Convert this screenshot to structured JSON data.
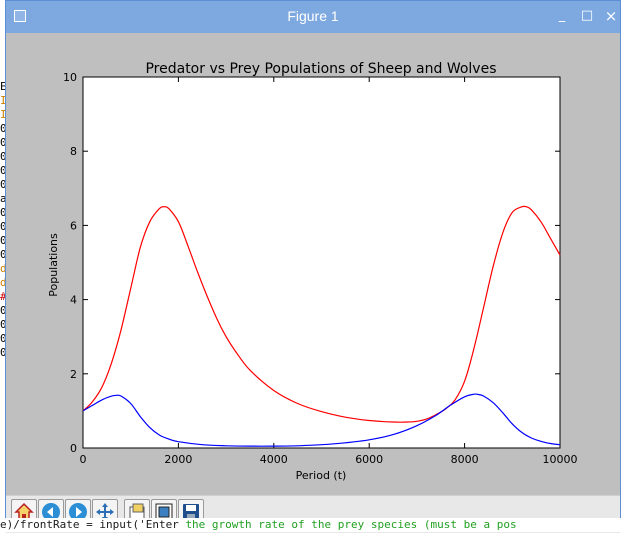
{
  "window": {
    "title": "Figure 1",
    "min_glyph": "_",
    "max_glyph": "□",
    "close_glyph": "×"
  },
  "background_text": {
    "left_chars": [
      "E",
      "I",
      "I",
      "0",
      "0",
      "0",
      "0",
      "0",
      "a",
      "0",
      "0",
      "0",
      "0",
      "d",
      "d",
      "#",
      "0",
      "0",
      "0",
      "0"
    ],
    "bottom_line_code": "e)/frontRate = input('Enter ",
    "bottom_line_string": "the growth rate of the prey species (must be a pos"
  },
  "toolbar": {
    "buttons": [
      {
        "name": "home-button",
        "icon": "home-icon"
      },
      {
        "name": "back-button",
        "icon": "left-arrow-icon"
      },
      {
        "name": "forward-button",
        "icon": "right-arrow-icon"
      },
      {
        "name": "pan-button",
        "icon": "move-icon"
      },
      {
        "name": "zoom-button",
        "icon": "zoom-rect-icon"
      },
      {
        "name": "subplots-button",
        "icon": "subplots-icon"
      },
      {
        "name": "save-button",
        "icon": "save-icon"
      }
    ]
  },
  "chart_data": {
    "type": "line",
    "title": "Predator vs Prey Populations of Sheep and Wolves",
    "xlabel": "Period (t)",
    "ylabel": "Populations",
    "xlim": [
      0,
      10000
    ],
    "ylim": [
      0,
      10
    ],
    "xticks": [
      0,
      2000,
      4000,
      6000,
      8000,
      10000
    ],
    "yticks": [
      0,
      2,
      4,
      6,
      8,
      10
    ],
    "grid": false,
    "series": [
      {
        "color": "#ff0000",
        "x": [
          0,
          200,
          400,
          600,
          800,
          1000,
          1200,
          1400,
          1600,
          1700,
          1800,
          2000,
          2200,
          2400,
          2600,
          2800,
          3000,
          3200,
          3500,
          4000,
          4500,
          5000,
          5500,
          6000,
          6500,
          6800,
          7000,
          7200,
          7400,
          7600,
          7800,
          8000,
          8200,
          8400,
          8600,
          8800,
          9000,
          9200,
          9300,
          9400,
          9600,
          9800,
          10000
        ],
        "y": [
          1.0,
          1.25,
          1.65,
          2.3,
          3.2,
          4.3,
          5.4,
          6.1,
          6.45,
          6.5,
          6.45,
          6.1,
          5.45,
          4.75,
          4.1,
          3.5,
          3.0,
          2.6,
          2.1,
          1.55,
          1.2,
          0.98,
          0.83,
          0.74,
          0.7,
          0.7,
          0.72,
          0.78,
          0.9,
          1.05,
          1.3,
          1.8,
          2.7,
          3.8,
          4.9,
          5.8,
          6.35,
          6.5,
          6.5,
          6.42,
          6.1,
          5.65,
          5.2
        ]
      },
      {
        "color": "#0000ff",
        "x": [
          0,
          200,
          400,
          600,
          700,
          800,
          1000,
          1200,
          1400,
          1600,
          1800,
          2000,
          2500,
          3000,
          3500,
          4000,
          4500,
          5000,
          5500,
          6000,
          6500,
          7000,
          7400,
          7700,
          8000,
          8200,
          8300,
          8400,
          8600,
          8800,
          9000,
          9200,
          9400,
          9600,
          9800,
          10000
        ],
        "y": [
          1.0,
          1.15,
          1.3,
          1.4,
          1.42,
          1.4,
          1.2,
          0.85,
          0.55,
          0.35,
          0.24,
          0.17,
          0.09,
          0.06,
          0.05,
          0.05,
          0.06,
          0.09,
          0.14,
          0.22,
          0.36,
          0.6,
          0.88,
          1.15,
          1.38,
          1.45,
          1.44,
          1.4,
          1.22,
          0.95,
          0.65,
          0.42,
          0.27,
          0.18,
          0.12,
          0.09
        ]
      }
    ]
  }
}
